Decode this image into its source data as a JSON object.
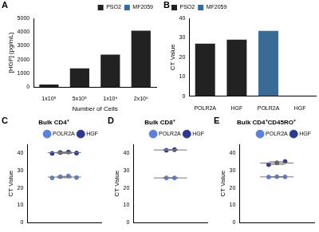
{
  "chart_data": [
    {
      "panel": "A",
      "type": "bar",
      "categories": [
        "1x10⁵",
        "5x10⁵",
        "1x10⁶",
        "2x10⁶"
      ],
      "x_label": "Number of Cells",
      "y_label": "[HGF] (pg/mL)",
      "series": [
        {
          "name": "PSO2",
          "color": "#222222",
          "values": [
            180,
            1350,
            2350,
            4100
          ]
        },
        {
          "name": "MF2059",
          "color": "#3a6a96",
          "values": [
            null,
            null,
            null,
            null
          ]
        }
      ],
      "ylim": [
        0,
        5000
      ],
      "yticks": [
        0,
        1000,
        2000,
        3000,
        4000,
        5000
      ],
      "legend": "top-right"
    },
    {
      "panel": "B",
      "type": "bar",
      "categories": [
        "POLR2A",
        "HGF",
        "POLR2A",
        "HGF"
      ],
      "y_label": "CT Value",
      "series": [
        {
          "name": "PSO2",
          "color": "#222222",
          "values": [
            27,
            29,
            null,
            null
          ]
        },
        {
          "name": "MF2059",
          "color": "#3a6a96",
          "values": [
            null,
            null,
            33.5,
            null
          ]
        }
      ],
      "ylim": [
        0,
        40
      ],
      "yticks": [
        0,
        10,
        20,
        30,
        40
      ],
      "legend": "top-left"
    },
    {
      "panel": "C",
      "type": "scatter",
      "title": "Bulk CD4⁺",
      "y_label": "CT Value",
      "series": [
        {
          "name": "POLR2A",
          "color": "#5b82d6",
          "values": [
            25.8,
            26.5,
            26.9,
            26.0
          ],
          "mean": 26.3,
          "error": 0.4
        },
        {
          "name": "HGF",
          "color": "#2d3a8c",
          "values": [
            40.0,
            40.5,
            40.8,
            40.2
          ],
          "mean": 40.4,
          "error": 0.4
        }
      ],
      "ylim": [
        0,
        45
      ],
      "yticks": [
        0,
        10,
        20,
        30,
        40
      ],
      "legend": "top-right",
      "tick_labels": "y"
    },
    {
      "panel": "D",
      "type": "scatter",
      "title": "Bulk CD8⁺",
      "y_label": "CT Value",
      "series": [
        {
          "name": "POLR2A",
          "color": "#5b82d6",
          "values": [
            25.8,
            25.8
          ],
          "mean": 25.8,
          "error": 0.1
        },
        {
          "name": "HGF",
          "color": "#2d3a8c",
          "values": [
            41.8,
            42.2
          ],
          "mean": 42.0,
          "error": 0.2
        }
      ],
      "ylim": [
        0,
        45
      ],
      "yticks": [
        0,
        10,
        20,
        30,
        40
      ],
      "legend": "top-right",
      "tick_labels": "y"
    },
    {
      "panel": "E",
      "type": "scatter",
      "title": "Bulk CD4⁺CD45RO⁺",
      "y_label": "CT Value",
      "series": [
        {
          "name": "POLR2A",
          "color": "#5b82d6",
          "values": [
            26.3,
            26.5,
            26.4
          ],
          "mean": 26.4,
          "error": 0.1
        },
        {
          "name": "HGF",
          "color": "#2d3a8c",
          "values": [
            33.5,
            34.5,
            35.3
          ],
          "mean": 34.4,
          "error": 0.8
        }
      ],
      "ylim": [
        0,
        45
      ],
      "yticks": [
        0,
        10,
        20,
        30,
        40
      ],
      "legend": "top-right",
      "tick_labels": "y"
    }
  ]
}
